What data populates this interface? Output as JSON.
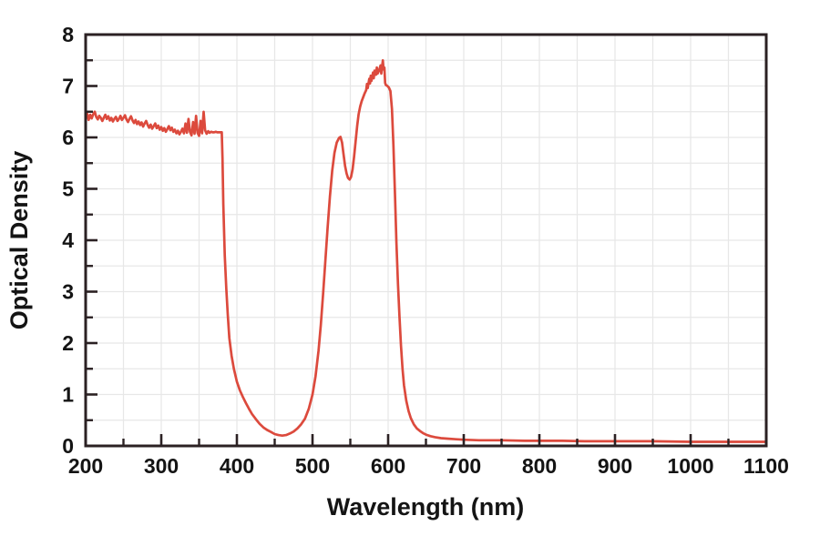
{
  "figure": {
    "background": "#ffffff"
  },
  "chart_data": {
    "type": "line",
    "title": "",
    "xlabel": "Wavelength (nm)",
    "ylabel": "Optical Density",
    "xlim": [
      200,
      1100
    ],
    "ylim": [
      0,
      8
    ],
    "x_major_ticks": [
      200,
      300,
      400,
      500,
      600,
      700,
      800,
      900,
      1000,
      1100
    ],
    "x_minor_step": 50,
    "y_major_ticks": [
      0,
      1,
      2,
      3,
      4,
      5,
      6,
      7,
      8
    ],
    "y_minor_step": 0.5,
    "grid": {
      "show": true,
      "x_step": 50,
      "y_step": 0.5
    },
    "legend": null,
    "line_color": "#dc4a3d",
    "axis_color": "#2b2123",
    "grid_color": "#e7e7e7",
    "series": [
      {
        "name": "Optical Density",
        "points": [
          [
            200,
            6.42
          ],
          [
            202,
            6.46
          ],
          [
            204,
            6.34
          ],
          [
            206,
            6.44
          ],
          [
            208,
            6.37
          ],
          [
            210,
            6.45
          ],
          [
            212,
            6.5
          ],
          [
            214,
            6.4
          ],
          [
            216,
            6.35
          ],
          [
            218,
            6.42
          ],
          [
            220,
            6.38
          ],
          [
            222,
            6.32
          ],
          [
            224,
            6.38
          ],
          [
            226,
            6.44
          ],
          [
            228,
            6.36
          ],
          [
            230,
            6.41
          ],
          [
            232,
            6.33
          ],
          [
            234,
            6.38
          ],
          [
            236,
            6.31
          ],
          [
            238,
            6.36
          ],
          [
            240,
            6.4
          ],
          [
            242,
            6.32
          ],
          [
            244,
            6.36
          ],
          [
            246,
            6.42
          ],
          [
            248,
            6.34
          ],
          [
            250,
            6.38
          ],
          [
            252,
            6.43
          ],
          [
            254,
            6.35
          ],
          [
            256,
            6.3
          ],
          [
            258,
            6.36
          ],
          [
            260,
            6.41
          ],
          [
            262,
            6.33
          ],
          [
            264,
            6.28
          ],
          [
            266,
            6.34
          ],
          [
            268,
            6.26
          ],
          [
            270,
            6.31
          ],
          [
            272,
            6.24
          ],
          [
            274,
            6.29
          ],
          [
            276,
            6.21
          ],
          [
            278,
            6.27
          ],
          [
            280,
            6.32
          ],
          [
            282,
            6.24
          ],
          [
            284,
            6.19
          ],
          [
            286,
            6.25
          ],
          [
            288,
            6.17
          ],
          [
            290,
            6.22
          ],
          [
            292,
            6.27
          ],
          [
            294,
            6.18
          ],
          [
            296,
            6.23
          ],
          [
            298,
            6.15
          ],
          [
            300,
            6.2
          ],
          [
            302,
            6.13
          ],
          [
            304,
            6.18
          ],
          [
            306,
            6.11
          ],
          [
            308,
            6.16
          ],
          [
            310,
            6.22
          ],
          [
            312,
            6.14
          ],
          [
            314,
            6.19
          ],
          [
            316,
            6.11
          ],
          [
            318,
            6.15
          ],
          [
            320,
            6.08
          ],
          [
            322,
            6.13
          ],
          [
            324,
            6.06
          ],
          [
            326,
            6.11
          ],
          [
            328,
            6.17
          ],
          [
            330,
            6.08
          ],
          [
            332,
            6.27
          ],
          [
            334,
            6.09
          ],
          [
            336,
            6.36
          ],
          [
            338,
            6.11
          ],
          [
            340,
            6.04
          ],
          [
            342,
            6.3
          ],
          [
            344,
            6.07
          ],
          [
            346,
            6.42
          ],
          [
            348,
            6.09
          ],
          [
            350,
            6.03
          ],
          [
            352,
            6.32
          ],
          [
            354,
            6.08
          ],
          [
            356,
            6.5
          ],
          [
            358,
            6.14
          ],
          [
            360,
            6.07
          ],
          [
            362,
            6.12
          ],
          [
            364,
            6.09
          ],
          [
            366,
            6.11
          ],
          [
            368,
            6.1
          ],
          [
            370,
            6.1
          ],
          [
            372,
            6.11
          ],
          [
            374,
            6.1
          ],
          [
            376,
            6.1
          ],
          [
            378,
            6.1
          ],
          [
            380,
            6.1
          ],
          [
            381,
            5.6
          ],
          [
            382,
            4.7
          ],
          [
            384,
            3.7
          ],
          [
            386,
            3.05
          ],
          [
            388,
            2.55
          ],
          [
            390,
            2.1
          ],
          [
            393,
            1.75
          ],
          [
            396,
            1.5
          ],
          [
            400,
            1.25
          ],
          [
            404,
            1.08
          ],
          [
            408,
            0.95
          ],
          [
            412,
            0.83
          ],
          [
            416,
            0.72
          ],
          [
            420,
            0.62
          ],
          [
            425,
            0.52
          ],
          [
            430,
            0.43
          ],
          [
            435,
            0.36
          ],
          [
            440,
            0.31
          ],
          [
            445,
            0.27
          ],
          [
            450,
            0.23
          ],
          [
            455,
            0.21
          ],
          [
            460,
            0.2
          ],
          [
            465,
            0.21
          ],
          [
            470,
            0.24
          ],
          [
            475,
            0.28
          ],
          [
            480,
            0.34
          ],
          [
            485,
            0.42
          ],
          [
            490,
            0.53
          ],
          [
            495,
            0.72
          ],
          [
            500,
            1.0
          ],
          [
            504,
            1.35
          ],
          [
            508,
            1.85
          ],
          [
            511,
            2.35
          ],
          [
            514,
            2.95
          ],
          [
            517,
            3.6
          ],
          [
            520,
            4.25
          ],
          [
            523,
            4.85
          ],
          [
            526,
            5.35
          ],
          [
            529,
            5.7
          ],
          [
            532,
            5.9
          ],
          [
            535,
            5.99
          ],
          [
            537,
            6.01
          ],
          [
            539,
            5.9
          ],
          [
            541,
            5.68
          ],
          [
            543,
            5.45
          ],
          [
            545,
            5.3
          ],
          [
            547,
            5.21
          ],
          [
            549,
            5.18
          ],
          [
            551,
            5.23
          ],
          [
            553,
            5.38
          ],
          [
            555,
            5.62
          ],
          [
            557,
            5.92
          ],
          [
            559,
            6.22
          ],
          [
            561,
            6.45
          ],
          [
            563,
            6.6
          ],
          [
            565,
            6.7
          ],
          [
            567,
            6.78
          ],
          [
            569,
            6.86
          ],
          [
            571,
            6.92
          ],
          [
            572,
            7.04
          ],
          [
            573,
            6.96
          ],
          [
            575,
            7.14
          ],
          [
            576,
            7.05
          ],
          [
            577,
            7.2
          ],
          [
            578,
            7.1
          ],
          [
            580,
            7.26
          ],
          [
            581,
            7.15
          ],
          [
            582,
            7.3
          ],
          [
            584,
            7.22
          ],
          [
            585,
            7.36
          ],
          [
            586,
            7.24
          ],
          [
            588,
            7.3
          ],
          [
            590,
            7.4
          ],
          [
            591,
            7.24
          ],
          [
            593,
            7.5
          ],
          [
            594,
            7.32
          ],
          [
            595,
            7.36
          ],
          [
            596,
            7.06
          ],
          [
            597,
            7.02
          ],
          [
            599,
            7.0
          ],
          [
            601,
            6.97
          ],
          [
            603,
            6.9
          ],
          [
            605,
            6.55
          ],
          [
            607,
            5.85
          ],
          [
            609,
            4.9
          ],
          [
            611,
            3.95
          ],
          [
            613,
            3.15
          ],
          [
            615,
            2.5
          ],
          [
            617,
            1.95
          ],
          [
            619,
            1.5
          ],
          [
            621,
            1.18
          ],
          [
            624,
            0.88
          ],
          [
            627,
            0.68
          ],
          [
            630,
            0.54
          ],
          [
            634,
            0.42
          ],
          [
            638,
            0.34
          ],
          [
            642,
            0.29
          ],
          [
            646,
            0.25
          ],
          [
            650,
            0.22
          ],
          [
            656,
            0.19
          ],
          [
            662,
            0.17
          ],
          [
            670,
            0.15
          ],
          [
            680,
            0.14
          ],
          [
            690,
            0.13
          ],
          [
            700,
            0.12
          ],
          [
            720,
            0.11
          ],
          [
            750,
            0.11
          ],
          [
            780,
            0.1
          ],
          [
            800,
            0.1
          ],
          [
            830,
            0.1
          ],
          [
            860,
            0.09
          ],
          [
            900,
            0.09
          ],
          [
            950,
            0.09
          ],
          [
            1000,
            0.08
          ],
          [
            1050,
            0.08
          ],
          [
            1100,
            0.08
          ]
        ]
      }
    ]
  }
}
